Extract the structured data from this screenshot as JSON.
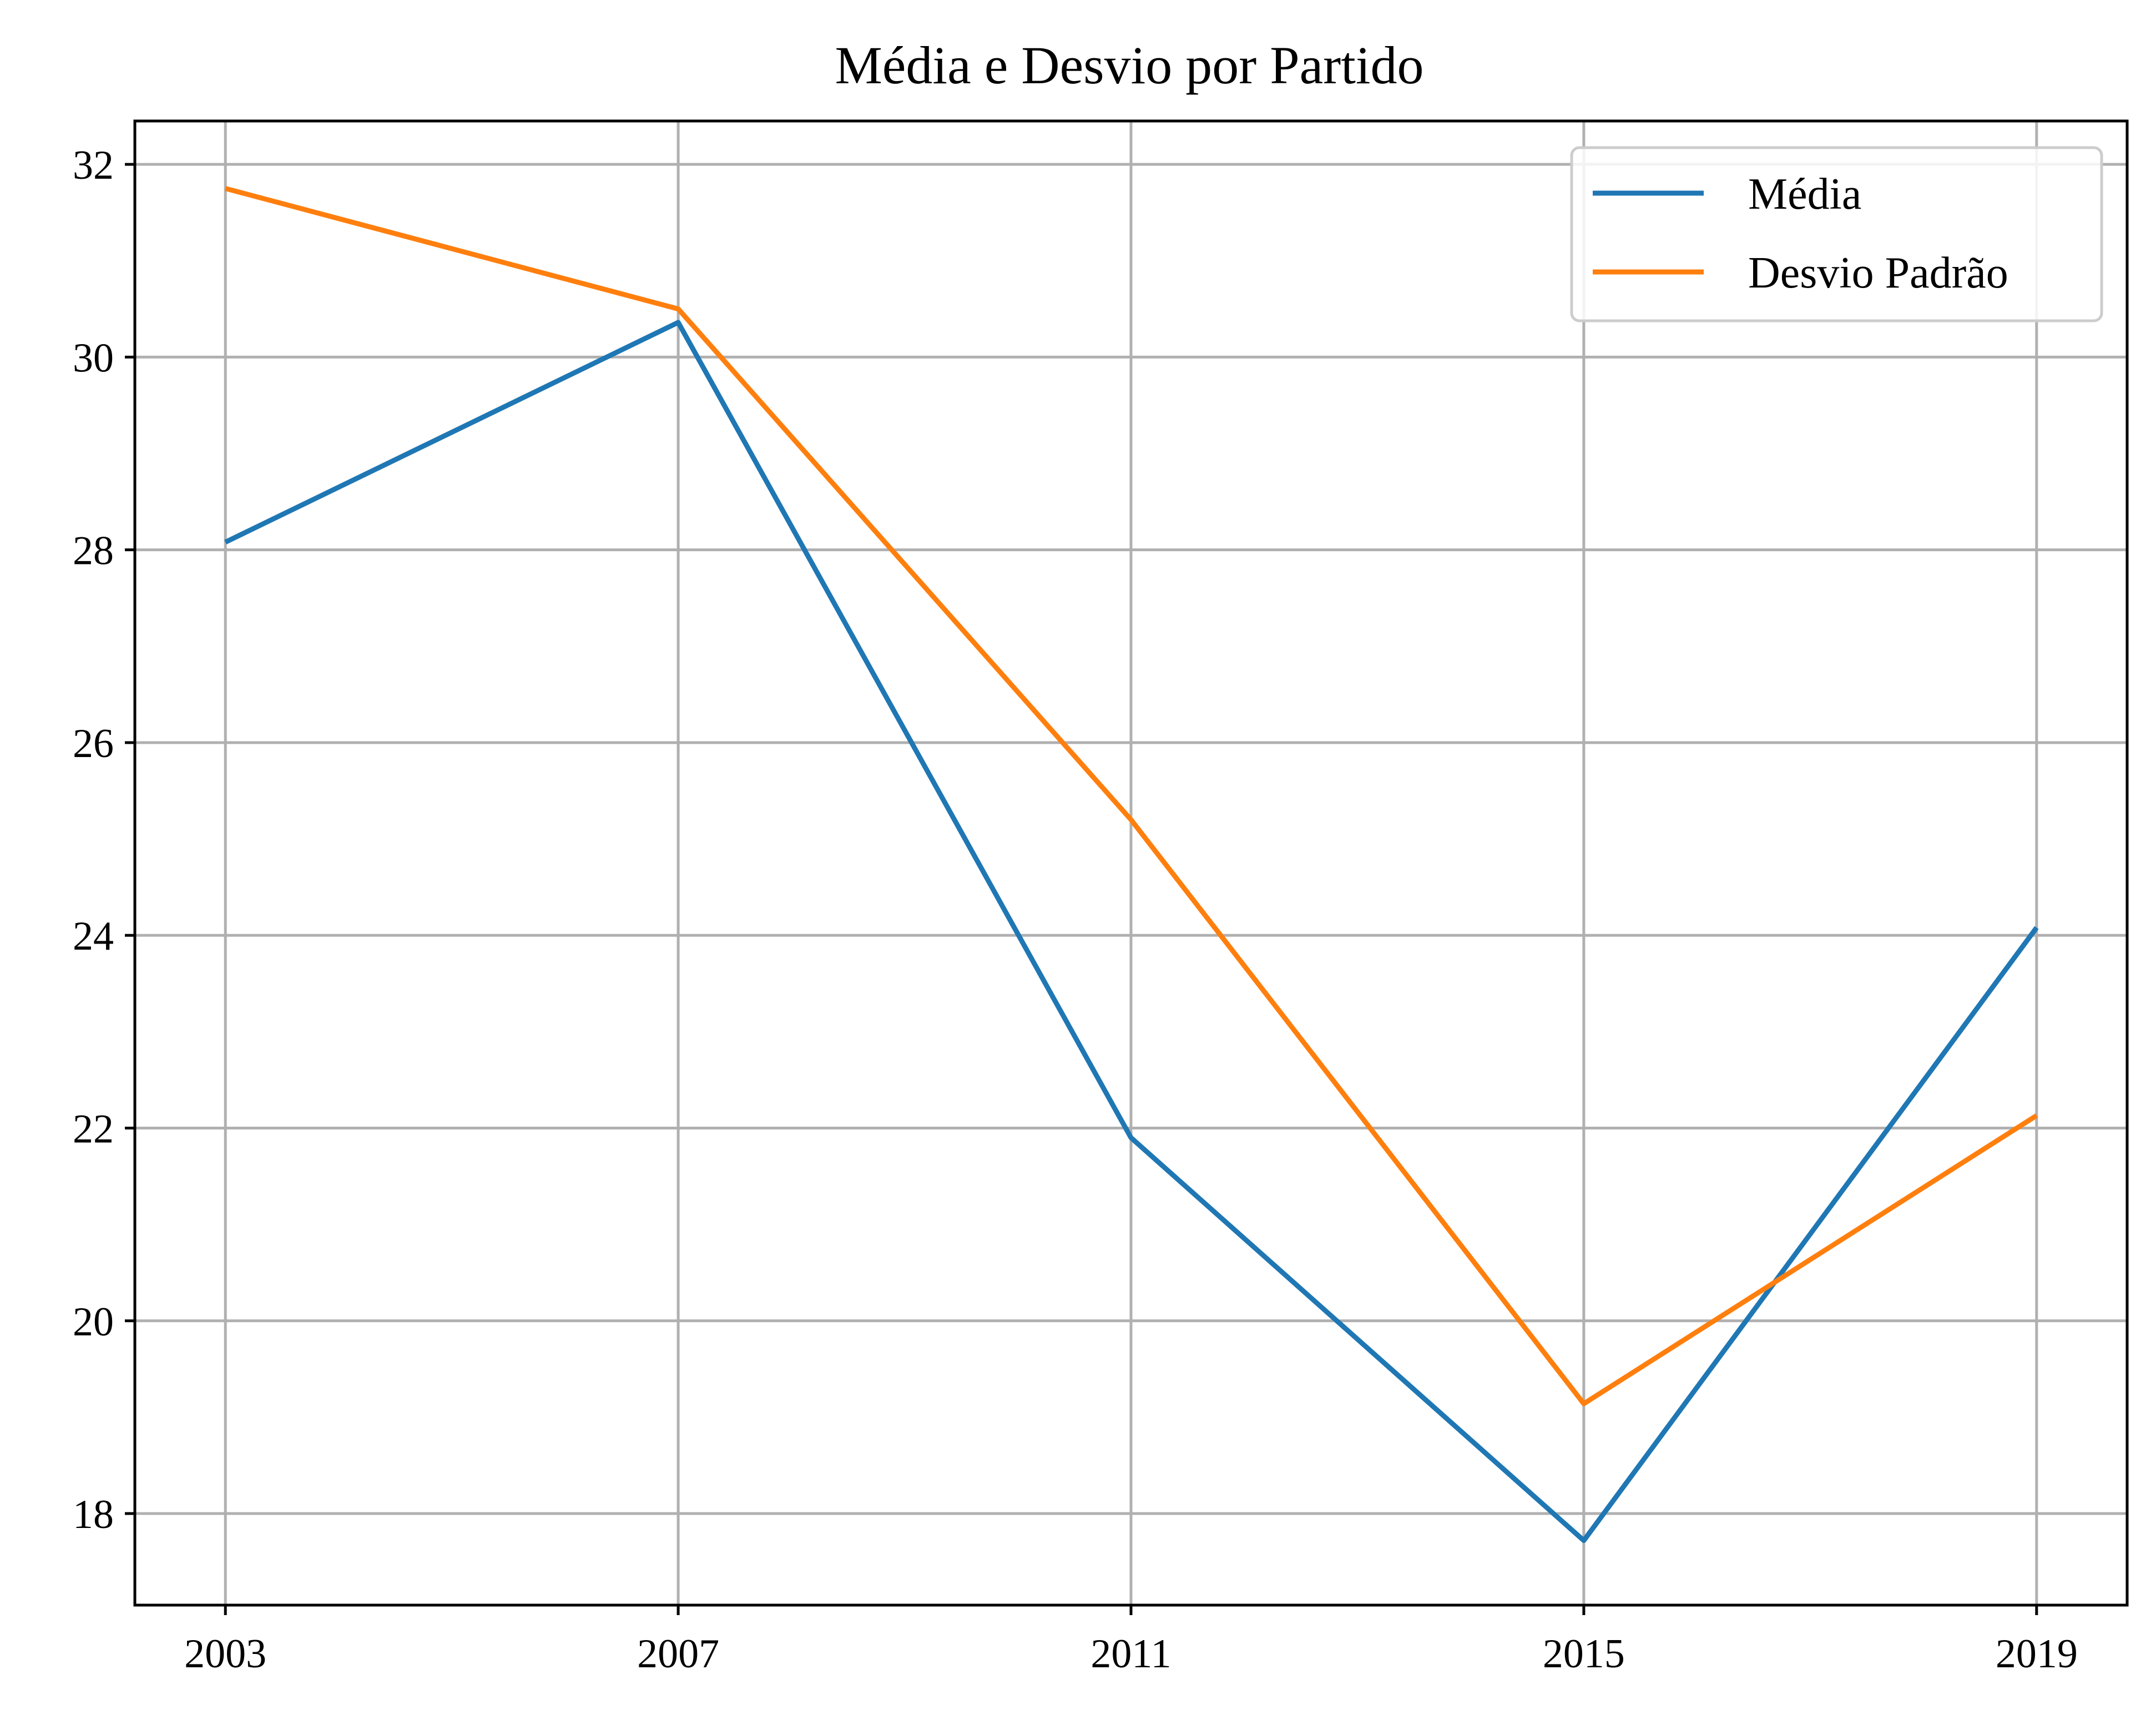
{
  "chart_data": {
    "type": "line",
    "title": "Média e Desvio por Partido",
    "xlabel": "",
    "ylabel": "",
    "x": [
      2003,
      2007,
      2011,
      2015,
      2019
    ],
    "x_tick_labels": [
      "2003",
      "2007",
      "2011",
      "2015",
      "2019"
    ],
    "y_ticks": [
      18,
      20,
      22,
      24,
      26,
      28,
      30,
      32
    ],
    "y_tick_labels": [
      "18",
      "20",
      "22",
      "24",
      "26",
      "28",
      "30",
      "32"
    ],
    "xlim": [
      2002.2,
      2019.8
    ],
    "ylim": [
      17.05,
      32.45
    ],
    "grid": true,
    "legend_position": "top-right",
    "series": [
      {
        "name": "Média",
        "color": "#1f77b4",
        "values": [
          28.08,
          30.36,
          21.9,
          17.72,
          24.08
        ]
      },
      {
        "name": "Desvio Padrão",
        "color": "#ff7f0e",
        "values": [
          31.75,
          30.5,
          25.2,
          19.14,
          22.13
        ]
      }
    ]
  }
}
